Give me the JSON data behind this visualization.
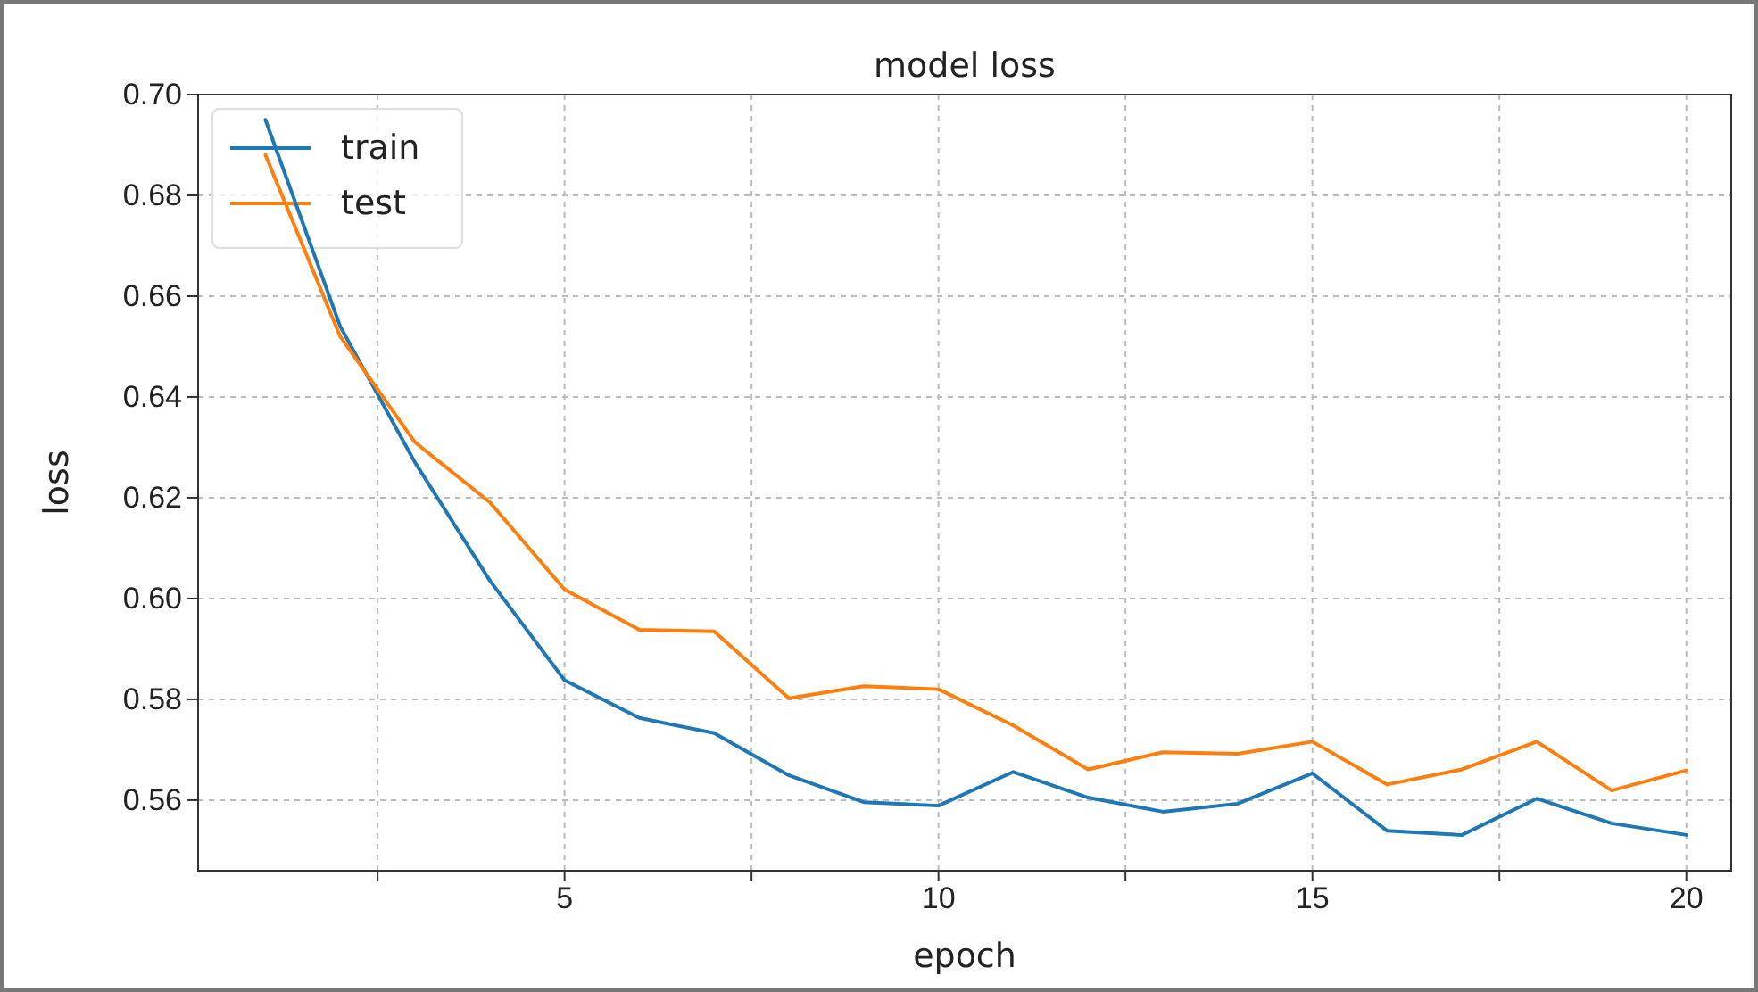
{
  "chart_data": {
    "type": "line",
    "title": "model loss",
    "xlabel": "epoch",
    "ylabel": "loss",
    "x": [
      1,
      2,
      3,
      4,
      5,
      6,
      7,
      8,
      9,
      10,
      11,
      12,
      13,
      14,
      15,
      16,
      17,
      18,
      19,
      20
    ],
    "series": [
      {
        "name": "train",
        "color": "#1f77b4",
        "values": [
          0.695,
          0.654,
          0.627,
          0.6036,
          0.5838,
          0.5763,
          0.5733,
          0.5649,
          0.5596,
          0.5589,
          0.5656,
          0.5605,
          0.5577,
          0.5593,
          0.5653,
          0.5539,
          0.5531,
          0.5603,
          0.5554,
          0.5531
        ]
      },
      {
        "name": "test",
        "color": "#ff7f0e",
        "values": [
          0.688,
          0.652,
          0.631,
          0.6191,
          0.6018,
          0.5938,
          0.5935,
          0.5802,
          0.5826,
          0.582,
          0.5748,
          0.5661,
          0.5695,
          0.5692,
          0.5716,
          0.5631,
          0.5661,
          0.5716,
          0.5619,
          0.5659
        ]
      }
    ],
    "xlim": [
      0.1,
      20.6
    ],
    "ylim": [
      0.546,
      0.7
    ],
    "xticks": [
      {
        "value": 2.5,
        "label": null
      },
      5,
      {
        "value": 7.5,
        "label": null
      },
      10,
      {
        "value": 12.5,
        "label": null
      },
      15,
      {
        "value": 17.5,
        "label": null
      },
      20
    ],
    "yticks": [
      {
        "value": 0.56,
        "label": "0.56"
      },
      {
        "value": 0.58,
        "label": "0.58"
      },
      {
        "value": 0.6,
        "label": "0.60"
      },
      {
        "value": 0.62,
        "label": "0.62"
      },
      {
        "value": 0.64,
        "label": "0.64"
      },
      {
        "value": 0.66,
        "label": "0.66"
      },
      {
        "value": 0.68,
        "label": "0.68"
      },
      {
        "value": 0.7,
        "label": "0.70"
      }
    ],
    "grid": true,
    "legend": "top left"
  }
}
